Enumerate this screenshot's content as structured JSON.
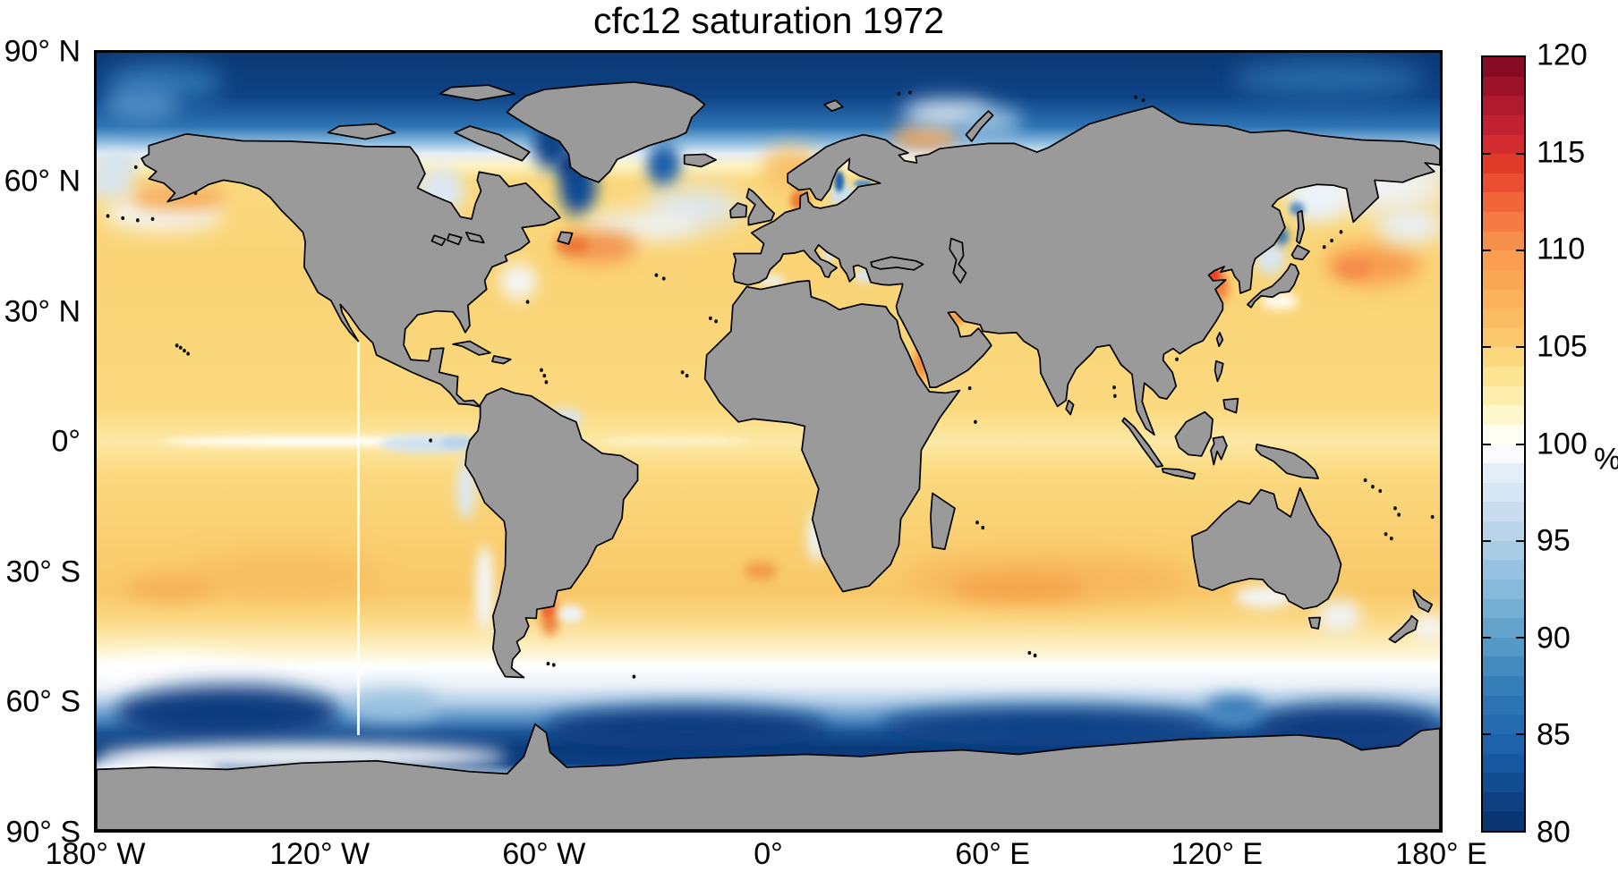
{
  "figure": {
    "title": "cfc12 saturation 1972"
  },
  "chart_data": {
    "type": "heatmap",
    "title": "cfc12 saturation 1972",
    "variable": "CFC-12 saturation",
    "year": "1972",
    "units": "%",
    "projection": "equirectangular world map, gray land with black coastlines",
    "x_axis": {
      "range_deg": [
        -180,
        180
      ],
      "ticks": [
        {
          "label": "180° W",
          "lon": -180
        },
        {
          "label": "120° W",
          "lon": -120
        },
        {
          "label": "60° W",
          "lon": -60
        },
        {
          "label": "0°",
          "lon": 0
        },
        {
          "label": "60° E",
          "lon": 60
        },
        {
          "label": "120° E",
          "lon": 120
        },
        {
          "label": "180° E",
          "lon": 180
        }
      ]
    },
    "y_axis": {
      "range_deg": [
        -90,
        90
      ],
      "ticks": [
        {
          "label": "90° N",
          "lat": 90
        },
        {
          "label": "60° N",
          "lat": 60
        },
        {
          "label": "30° N",
          "lat": 30
        },
        {
          "label": "0°",
          "lat": 0
        },
        {
          "label": "30° S",
          "lat": -30
        },
        {
          "label": "60° S",
          "lat": -60
        },
        {
          "label": "90° S",
          "lat": -90
        }
      ]
    },
    "colorbar": {
      "min": 80,
      "max": 120,
      "n_bands": 40,
      "unit_label": "%",
      "tick_labels": [
        {
          "label": "120",
          "value": 120
        },
        {
          "label": "115",
          "value": 115
        },
        {
          "label": "110",
          "value": 110
        },
        {
          "label": "105",
          "value": 105
        },
        {
          "label": "100",
          "value": 100
        },
        {
          "label": "95",
          "value": 95
        },
        {
          "label": "90",
          "value": 90
        },
        {
          "label": "85",
          "value": 85
        },
        {
          "label": "80",
          "value": 80
        }
      ],
      "stops": [
        [
          80,
          "#08306b"
        ],
        [
          84,
          "#1a5ea8"
        ],
        [
          87,
          "#2e77b5"
        ],
        [
          90,
          "#5b9ec9"
        ],
        [
          93,
          "#8fbedd"
        ],
        [
          96,
          "#c2d9ec"
        ],
        [
          98.5,
          "#e4eef7"
        ],
        [
          99.8,
          "#ffffff"
        ],
        [
          100.2,
          "#ffffff"
        ],
        [
          101,
          "#fffbe0"
        ],
        [
          102,
          "#fef3bb"
        ],
        [
          104,
          "#fddf86"
        ],
        [
          105,
          "#fcce73"
        ],
        [
          107,
          "#fbb75e"
        ],
        [
          109,
          "#f9a251"
        ],
        [
          110,
          "#f79750"
        ],
        [
          111.5,
          "#f47b43"
        ],
        [
          113,
          "#ef5a35"
        ],
        [
          114.5,
          "#e03a29"
        ],
        [
          116,
          "#cb2433"
        ],
        [
          117.5,
          "#b01a2e"
        ],
        [
          119,
          "#920e27"
        ],
        [
          120,
          "#7a0822"
        ]
      ]
    },
    "land_color": "#9a9a9a",
    "coastline_color": "#000000",
    "notable_features": [
      {
        "region": "Arctic Ocean",
        "approx_value_pct": "80-86"
      },
      {
        "region": "Labrador Sea / SE Greenland tongues",
        "approx_value_pct": "85-92"
      },
      {
        "region": "Subtropical gyres (global)",
        "approx_value_pct": "103-107"
      },
      {
        "region": "Gulf Stream off Newfoundland",
        "approx_value_pct": "108-111"
      },
      {
        "region": "North Sea / Norwegian coast",
        "approx_value_pct": "106-110"
      },
      {
        "region": "Bohai / Yellow Sea hot spot",
        "approx_value_pct": "112-116"
      },
      {
        "region": "Kuroshio extension east of Japan",
        "approx_value_pct": "106-108"
      },
      {
        "region": "Equatorial East Pacific cold tongue",
        "approx_value_pct": "97-100"
      },
      {
        "region": "Transition band 45-55°S",
        "approx_value_pct": "98-101"
      },
      {
        "region": "Southern Ocean 55-75°S",
        "approx_value_pct": "80-88"
      },
      {
        "region": "Argentine shelf",
        "approx_value_pct": "108-110"
      },
      {
        "region": "Persian Gulf / southern Red Sea",
        "approx_value_pct": "107-110"
      },
      {
        "region": "Baltic Sea (Gulf of Bothnia)",
        "approx_value_pct": "85-95"
      },
      {
        "region": "white vertical data gap line near 110°W",
        "approx_value_pct": "no data"
      }
    ]
  }
}
